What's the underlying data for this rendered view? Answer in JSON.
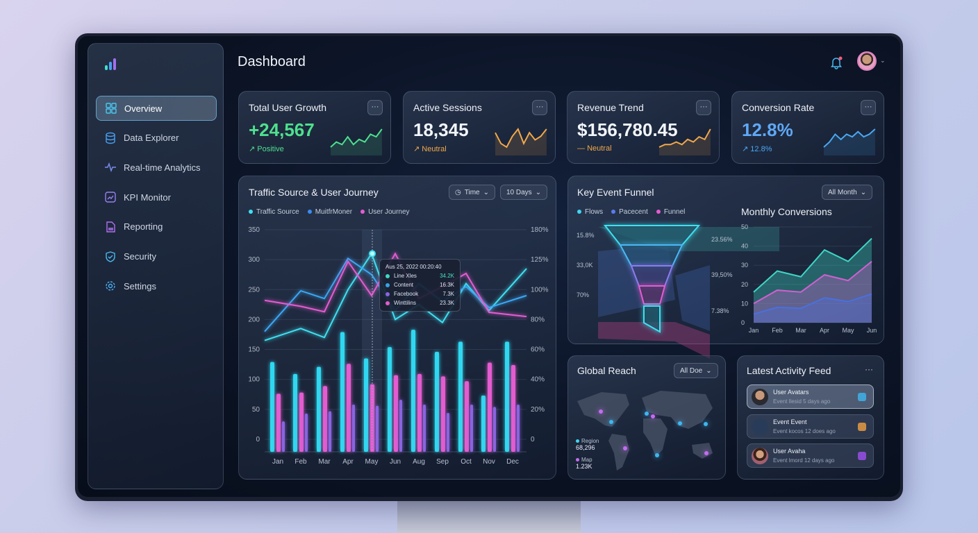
{
  "header": {
    "title": "Dashboard",
    "notification_icon": "bell-icon",
    "avatar_icon": "user-avatar"
  },
  "sidebar": {
    "logo_icon": "bar-chart-logo",
    "items": [
      {
        "label": "Overview",
        "icon": "grid-icon",
        "active": true
      },
      {
        "label": "Data Explorer",
        "icon": "database-icon"
      },
      {
        "label": "Real-time Analytics",
        "icon": "pulse-icon"
      },
      {
        "label": "KPI Monitor",
        "icon": "kpi-chart-icon"
      },
      {
        "label": "Reporting",
        "icon": "document-icon"
      },
      {
        "label": "Security",
        "icon": "shield-icon"
      },
      {
        "label": "Settings",
        "icon": "gear-icon"
      }
    ]
  },
  "kpis": [
    {
      "title": "Total User Growth",
      "value": "+24,567",
      "status": "Positive",
      "status_icon": "arrow-up-right",
      "color": "#4ee08e",
      "trend": [
        2,
        4,
        3,
        6,
        3,
        5,
        4,
        7,
        6,
        9
      ]
    },
    {
      "title": "Active Sessions",
      "value": "18,345",
      "status": "Neutral",
      "status_icon": "arrow-up-right",
      "color": "#f2a84a",
      "trend": [
        6,
        3,
        2,
        5,
        7,
        3,
        6,
        4,
        5,
        7
      ]
    },
    {
      "title": "Revenue Trend",
      "value": "$156,780.45",
      "status": "Neutral",
      "status_icon": "dash",
      "color": "#f2a84a",
      "trend": [
        1,
        2,
        2,
        3,
        2,
        4,
        3,
        5,
        4,
        8
      ]
    },
    {
      "title": "Conversion Rate",
      "value": "12.8%",
      "status": "12.8%",
      "status_icon": "arrow-up-right",
      "color": "#4aa8f2",
      "value_color": "#5fa8f5",
      "trend": [
        1,
        3,
        6,
        4,
        6,
        5,
        7,
        5,
        6,
        8
      ]
    }
  ],
  "traffic": {
    "title": "Traffic Source & User Journey",
    "time_label": "Time",
    "range_label": "10 Days",
    "tooltip": {
      "date": "Aus 25, 2022 00:20:40",
      "rows": [
        {
          "label": "Line Xles",
          "value": "34.2K",
          "color": "#3fd6c4"
        },
        {
          "label": "Content",
          "value": "16.3K",
          "color": "#3aa0e8"
        },
        {
          "label": "Facebook",
          "value": "7.3K",
          "color": "#8a64e0"
        },
        {
          "label": "Winttilins",
          "value": "23.3K",
          "color": "#e45cc8"
        }
      ]
    }
  },
  "funnel": {
    "title": "Key Event Funnel",
    "range_label": "All Month",
    "legend": [
      {
        "label": "Flows",
        "color": "#3fd6f0"
      },
      {
        "label": "Pacecent",
        "color": "#5a7cf0"
      },
      {
        "label": "Funnel",
        "color": "#e45cd0"
      }
    ],
    "left_labels": [
      "15.8%",
      "33,0K",
      "70%"
    ],
    "right_labels": [
      "23.56%",
      "39,50%",
      "7.38%"
    ]
  },
  "global": {
    "title": "Global Reach",
    "range_label": "All Doe",
    "stats": [
      {
        "label": "Region",
        "value": "68,296",
        "color": "#3fd6f0"
      },
      {
        "label": "Map",
        "value": "1.23K",
        "color": "#c46cf0"
      }
    ]
  },
  "activity": {
    "title": "Latest Activity Feed",
    "more": "···",
    "items": [
      {
        "title": "User Avatars",
        "subtitle": "Event llesid 5 days ago",
        "icon": "link-icon",
        "icon_color": "#3fb6f0"
      },
      {
        "title": "Event Event",
        "subtitle": "Event kocos 12 does ago",
        "icon": "brush-icon",
        "icon_color": "#f0a040"
      },
      {
        "title": "User Avaha",
        "subtitle": "Event lmord 12 days ago",
        "icon": "puzzle-icon",
        "icon_color": "#a050f0"
      }
    ]
  },
  "chart_data": [
    {
      "type": "bar+line",
      "categories": [
        "Jan",
        "Feb",
        "Mar",
        "Apr",
        "May",
        "Jun",
        "Aug",
        "Sep",
        "Oct",
        "Nov",
        "Dec"
      ],
      "ylim": [
        0,
        350
      ],
      "yticks": [
        0,
        50,
        100,
        150,
        200,
        250,
        300,
        350
      ],
      "y2ticks": [
        "0",
        "20%",
        "40%",
        "60%",
        "80%",
        "100%",
        "125%",
        "180%"
      ],
      "legend": [
        {
          "label": "Traffic Source",
          "color": "#3fe0f0"
        },
        {
          "label": "MuitfrMoner",
          "color": "#3a8cf0"
        },
        {
          "label": "User Journey",
          "color": "#e45cd0"
        }
      ],
      "bars": [
        {
          "color": "#2fd8f0",
          "values": [
            129,
            109,
            121,
            179,
            135,
            154,
            183,
            146,
            163,
            73,
            163
          ]
        },
        {
          "color": "#e45cd0",
          "values": [
            76,
            78,
            89,
            126,
            92,
            107,
            109,
            105,
            97,
            128,
            124
          ]
        },
        {
          "color": "#8a64e0",
          "values": [
            30,
            43,
            47,
            58,
            56,
            66,
            58,
            44,
            58,
            54,
            58
          ]
        }
      ],
      "lines": [
        {
          "name": "Traffic Source",
          "color": "#3fe0f0",
          "values": [
            165,
            185,
            170,
            250,
            310,
            200,
            225,
            195,
            260,
            215,
            285
          ]
        },
        {
          "name": "MuitfrMoner",
          "color": "#3aa8f5",
          "values": [
            180,
            248,
            235,
            302,
            275,
            215,
            260,
            230,
            255,
            220,
            240
          ]
        },
        {
          "name": "User Journey",
          "color": "#e45cd0",
          "values": [
            232,
            222,
            213,
            297,
            240,
            310,
            235,
            255,
            277,
            212,
            205
          ]
        }
      ]
    },
    {
      "type": "area",
      "title": "Monthly Conversions",
      "categories": [
        "Jan",
        "Feb",
        "Mar",
        "Apr",
        "May",
        "Jun"
      ],
      "ylim": [
        0,
        50
      ],
      "yticks": [
        0,
        10,
        20,
        30,
        40,
        50
      ],
      "series": [
        {
          "color": "#3fd6c4",
          "values": [
            16,
            27,
            24,
            38,
            32,
            44
          ]
        },
        {
          "color": "#d060d0",
          "values": [
            10,
            17,
            16,
            25,
            22,
            32
          ]
        },
        {
          "color": "#4a70e0",
          "values": [
            4.5,
            8,
            7.5,
            13,
            11,
            15
          ]
        }
      ]
    }
  ]
}
